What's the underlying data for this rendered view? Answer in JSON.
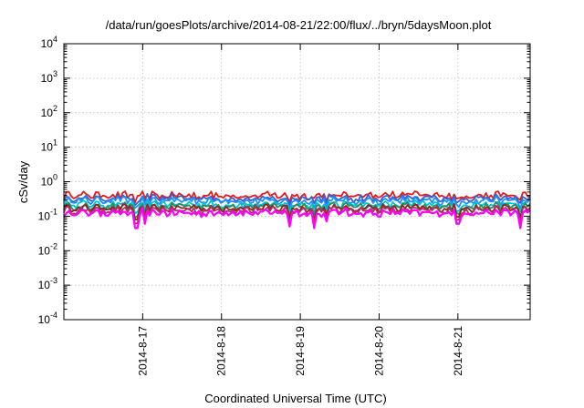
{
  "chart_data": {
    "type": "line",
    "title": "/data/run/goesPlots/archive/2014-08-21/22:00/flux/../bryn/5daysMoon.plot",
    "xlabel": "Coordinated Universal Time (UTC)",
    "ylabel": "cSv/day",
    "yscale": "log",
    "ylim": [
      0.0001,
      10000
    ],
    "ytick_mantissa": "10",
    "ytick_exponents": [
      "-4",
      "-3",
      "-2",
      "-1",
      "0",
      "1",
      "2",
      "3",
      "4"
    ],
    "x_start": "2014-08-16T00:00",
    "x_end": "2014-08-21T22:00",
    "xticks": [
      "2014-8-17",
      "2014-8-18",
      "2014-8-19",
      "2014-8-20",
      "2014-8-21"
    ],
    "grid": true,
    "legend": "none",
    "series": [
      {
        "color": "#e41a1c",
        "level": 0.4
      },
      {
        "color": "#3a5fcd",
        "level": 0.33
      },
      {
        "color": "#1e90ff",
        "level": 0.28
      },
      {
        "color": "#00c5cd",
        "level": 0.22
      },
      {
        "color": "#2e8b57",
        "level": 0.19
      },
      {
        "color": "#8b2323",
        "level": 0.17
      },
      {
        "color": "#b03060",
        "level": 0.15
      },
      {
        "color": "#ff00ff",
        "level": 0.125
      }
    ],
    "dips": [
      {
        "time": "2014-08-16T22:00",
        "value": 0.045
      },
      {
        "time": "2014-08-17T00:40",
        "value": 0.06
      },
      {
        "time": "2014-08-18T20:30",
        "value": 0.05
      },
      {
        "time": "2014-08-19T04:00",
        "value": 0.045
      },
      {
        "time": "2014-08-19T08:00",
        "value": 0.07
      },
      {
        "time": "2014-08-21T00:00",
        "value": 0.06
      },
      {
        "time": "2014-08-21T19:00",
        "value": 0.045
      }
    ]
  }
}
